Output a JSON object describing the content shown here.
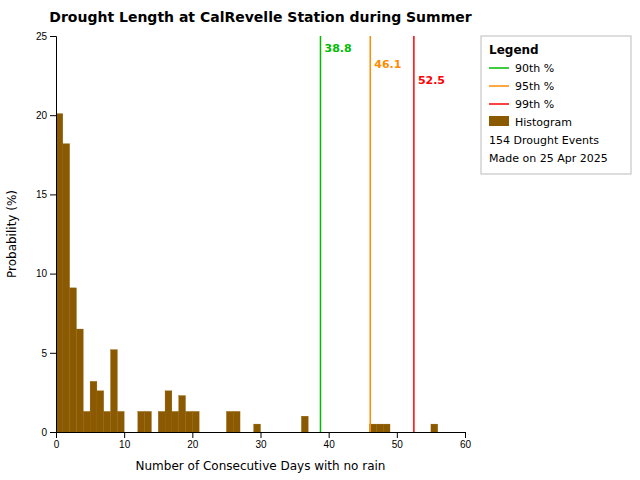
{
  "chart_data": {
    "type": "histogram",
    "title": "Drought Length at CalRevelle Station during Summer",
    "x_label": "Number of Consecutive Days with no rain",
    "y_label": "Probability (%)",
    "bins": [
      0,
      1,
      2,
      3,
      4,
      5,
      6,
      7,
      8,
      9,
      10,
      11,
      12,
      13,
      14,
      15,
      16,
      17,
      18,
      19,
      20,
      21,
      22,
      23,
      24,
      25,
      26,
      27,
      28,
      29,
      30,
      31,
      32,
      33,
      34,
      35,
      36,
      37,
      38,
      39,
      40,
      41,
      42,
      43,
      44,
      45,
      46,
      47,
      48,
      49,
      50,
      51,
      52,
      53,
      54,
      55,
      56,
      57,
      58,
      59,
      60
    ],
    "series": [
      {
        "name": "Histogram",
        "color": "#8B5A00",
        "values": [
          20.1,
          18.2,
          9.1,
          6.5,
          1.3,
          3.2,
          2.6,
          1.3,
          5.2,
          1.3,
          0.0,
          0.0,
          1.3,
          1.3,
          0.0,
          1.3,
          2.6,
          1.3,
          2.3,
          1.3,
          1.3,
          0.0,
          0.0,
          0.0,
          0.0,
          1.3,
          1.3,
          0.0,
          0.0,
          0.5,
          0.0,
          0.0,
          0.0,
          0.0,
          0.0,
          0.0,
          1.0,
          0.0,
          0.0,
          0.0,
          0.0,
          0.0,
          0.0,
          0.0,
          0.0,
          0.0,
          0.5,
          0.5,
          0.5,
          0.0,
          0.0,
          0.0,
          0.0,
          0.0,
          0.0,
          0.5,
          0.0,
          0.0,
          0.0,
          0.0
        ]
      }
    ],
    "vlines": [
      {
        "name": "90th %",
        "x": 38.8,
        "color": "#00BB00"
      },
      {
        "name": "95th %",
        "x": 46.1,
        "color": "#FF8C00"
      },
      {
        "name": "99th %",
        "x": 52.5,
        "color": "#FF0000"
      }
    ],
    "xlim": [
      0,
      60
    ],
    "ylim": [
      0,
      25
    ],
    "xticks": [
      0,
      10,
      20,
      30,
      40,
      50,
      60
    ],
    "yticks": [
      0,
      5,
      10,
      15,
      20,
      25
    ],
    "grid": false,
    "legend": "upper right",
    "legend_title": "Legend",
    "legend_notes": [
      "154 Drought Events",
      "Made on 25 Apr 2025"
    ]
  }
}
